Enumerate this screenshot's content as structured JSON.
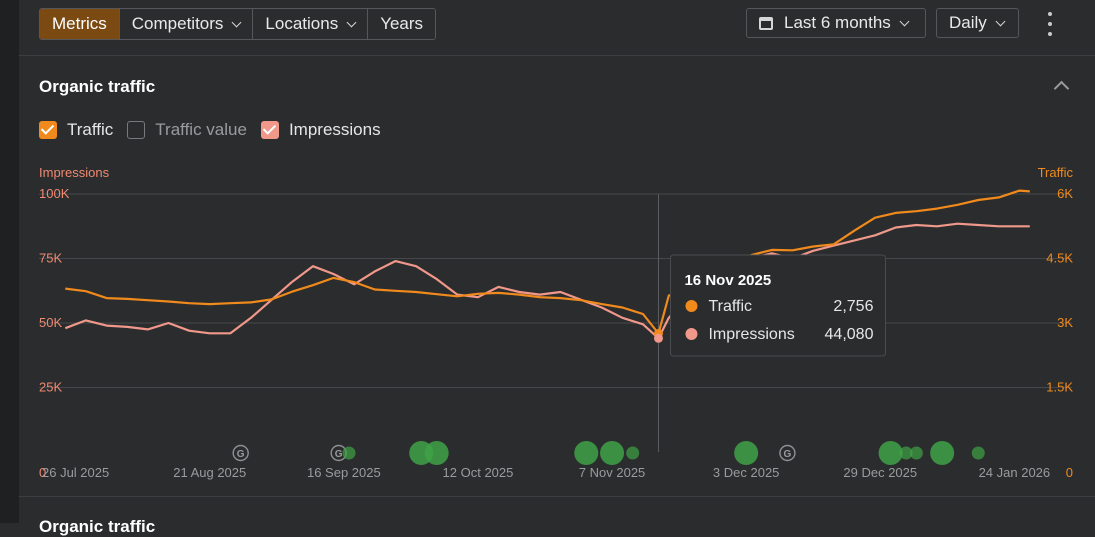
{
  "toolbar": {
    "tabs": [
      {
        "label": "Metrics",
        "active": true,
        "dropdown": false
      },
      {
        "label": "Competitors",
        "active": false,
        "dropdown": true
      },
      {
        "label": "Locations",
        "active": false,
        "dropdown": true
      },
      {
        "label": "Years",
        "active": false,
        "dropdown": false
      }
    ],
    "date_range": "Last 6 months",
    "interval": "Daily",
    "icons": {
      "calendar": "calendar-icon",
      "more": "kebab-menu-icon"
    }
  },
  "panel": {
    "title": "Organic traffic",
    "legend": [
      {
        "label": "Traffic",
        "checked": true,
        "color": "#f08a1c"
      },
      {
        "label": "Traffic value",
        "checked": false,
        "color": "#77797d"
      },
      {
        "label": "Impressions",
        "checked": true,
        "color": "#f0988a"
      }
    ]
  },
  "tooltip": {
    "date": "16 Nov 2025",
    "rows": [
      {
        "label": "Traffic",
        "value": "2,756",
        "color": "#f08a1c"
      },
      {
        "label": "Impressions",
        "value": "44,080",
        "color": "#f0988a"
      }
    ]
  },
  "bottom_section": {
    "title": "Organic traffic"
  },
  "colors": {
    "traffic": "#f08a1c",
    "impressions": "#f0988a",
    "event": "#3fa246",
    "background": "#2b2c2e"
  },
  "chart_data": {
    "type": "line",
    "x_start": "2025-07-22",
    "x_end": "2026-01-28",
    "x_ticks": [
      {
        "date": "2025-07-26",
        "label": "26 Jul 2025"
      },
      {
        "date": "2025-08-21",
        "label": "21 Aug 2025"
      },
      {
        "date": "2025-09-16",
        "label": "16 Sep 2025"
      },
      {
        "date": "2025-10-12",
        "label": "12 Oct 2025"
      },
      {
        "date": "2025-11-07",
        "label": "7 Nov 2025"
      },
      {
        "date": "2025-12-03",
        "label": "3 Dec 2025"
      },
      {
        "date": "2025-12-29",
        "label": "29 Dec 2025"
      },
      {
        "date": "2026-01-24",
        "label": "24 Jan 2026"
      }
    ],
    "y_left": {
      "title": "Impressions",
      "min": 0,
      "max": 100000,
      "ticks": [
        0,
        25000,
        50000,
        75000,
        100000
      ],
      "tick_labels": [
        "0",
        "25K",
        "50K",
        "75K",
        "100K"
      ],
      "color": "#f08a70"
    },
    "y_right": {
      "title": "Traffic",
      "min": 0,
      "max": 6000,
      "ticks": [
        0,
        1500,
        3000,
        4500,
        6000
      ],
      "tick_labels": [
        "0",
        "1.5K",
        "3K",
        "4.5K",
        "6K"
      ],
      "color": "#f08a1c"
    },
    "grid": true,
    "hover_date": "2025-11-16",
    "series": [
      {
        "name": "Traffic",
        "axis": "right",
        "points": [
          [
            "2025-07-24",
            3800
          ],
          [
            "2025-07-28",
            3740
          ],
          [
            "2025-08-01",
            3580
          ],
          [
            "2025-08-05",
            3560
          ],
          [
            "2025-08-09",
            3530
          ],
          [
            "2025-08-13",
            3500
          ],
          [
            "2025-08-17",
            3460
          ],
          [
            "2025-08-21",
            3440
          ],
          [
            "2025-08-25",
            3460
          ],
          [
            "2025-08-29",
            3480
          ],
          [
            "2025-09-02",
            3550
          ],
          [
            "2025-09-06",
            3730
          ],
          [
            "2025-09-10",
            3880
          ],
          [
            "2025-09-14",
            4050
          ],
          [
            "2025-09-18",
            3950
          ],
          [
            "2025-09-22",
            3780
          ],
          [
            "2025-09-26",
            3750
          ],
          [
            "2025-09-30",
            3720
          ],
          [
            "2025-10-04",
            3670
          ],
          [
            "2025-10-08",
            3620
          ],
          [
            "2025-10-12",
            3680
          ],
          [
            "2025-10-16",
            3700
          ],
          [
            "2025-10-20",
            3660
          ],
          [
            "2025-10-24",
            3600
          ],
          [
            "2025-10-28",
            3580
          ],
          [
            "2025-11-01",
            3530
          ],
          [
            "2025-11-05",
            3440
          ],
          [
            "2025-11-09",
            3360
          ],
          [
            "2025-11-13",
            3210
          ],
          [
            "2025-11-16",
            2756
          ],
          [
            "2025-11-18",
            3640
          ],
          [
            "2025-11-22",
            3700
          ],
          [
            "2025-11-26",
            4150
          ],
          [
            "2025-11-30",
            4380
          ],
          [
            "2025-12-04",
            4580
          ],
          [
            "2025-12-08",
            4700
          ],
          [
            "2025-12-12",
            4690
          ],
          [
            "2025-12-16",
            4780
          ],
          [
            "2025-12-20",
            4830
          ],
          [
            "2025-12-24",
            5150
          ],
          [
            "2025-12-28",
            5450
          ],
          [
            "2026-01-01",
            5560
          ],
          [
            "2026-01-05",
            5600
          ],
          [
            "2026-01-09",
            5660
          ],
          [
            "2026-01-13",
            5750
          ],
          [
            "2026-01-17",
            5860
          ],
          [
            "2026-01-21",
            5920
          ],
          [
            "2026-01-25",
            6080
          ],
          [
            "2026-01-27",
            6060
          ]
        ]
      },
      {
        "name": "Impressions",
        "axis": "left",
        "points": [
          [
            "2025-07-24",
            48000
          ],
          [
            "2025-07-28",
            51000
          ],
          [
            "2025-08-01",
            49000
          ],
          [
            "2025-08-05",
            48500
          ],
          [
            "2025-08-09",
            47500
          ],
          [
            "2025-08-13",
            50000
          ],
          [
            "2025-08-17",
            47000
          ],
          [
            "2025-08-21",
            46000
          ],
          [
            "2025-08-25",
            46000
          ],
          [
            "2025-08-29",
            52000
          ],
          [
            "2025-09-02",
            59000
          ],
          [
            "2025-09-06",
            66000
          ],
          [
            "2025-09-10",
            72000
          ],
          [
            "2025-09-14",
            69000
          ],
          [
            "2025-09-18",
            65000
          ],
          [
            "2025-09-22",
            70000
          ],
          [
            "2025-09-26",
            74000
          ],
          [
            "2025-09-30",
            72000
          ],
          [
            "2025-10-04",
            67000
          ],
          [
            "2025-10-08",
            61000
          ],
          [
            "2025-10-12",
            60000
          ],
          [
            "2025-10-16",
            64000
          ],
          [
            "2025-10-20",
            62000
          ],
          [
            "2025-10-24",
            61000
          ],
          [
            "2025-10-28",
            62000
          ],
          [
            "2025-11-01",
            59000
          ],
          [
            "2025-11-05",
            56000
          ],
          [
            "2025-11-09",
            52000
          ],
          [
            "2025-11-13",
            49500
          ],
          [
            "2025-11-16",
            44080
          ],
          [
            "2025-11-18",
            52000
          ],
          [
            "2025-11-22",
            61000
          ],
          [
            "2025-11-26",
            71000
          ],
          [
            "2025-11-30",
            73000
          ],
          [
            "2025-12-04",
            75000
          ],
          [
            "2025-12-08",
            77000
          ],
          [
            "2025-12-12",
            75000
          ],
          [
            "2025-12-16",
            78000
          ],
          [
            "2025-12-20",
            80000
          ],
          [
            "2025-12-24",
            82000
          ],
          [
            "2025-12-28",
            84000
          ],
          [
            "2026-01-01",
            87000
          ],
          [
            "2026-01-05",
            88000
          ],
          [
            "2026-01-09",
            87500
          ],
          [
            "2026-01-13",
            88500
          ],
          [
            "2026-01-17",
            88000
          ],
          [
            "2026-01-21",
            87500
          ],
          [
            "2026-01-25",
            87500
          ],
          [
            "2026-01-27",
            87500
          ]
        ]
      }
    ],
    "annotations": [
      {
        "date": "2025-08-27",
        "kind": "google-update",
        "label": "G"
      },
      {
        "date": "2025-09-15",
        "kind": "google-update",
        "label": "G"
      },
      {
        "date": "2025-09-17",
        "kind": "event",
        "size": "small"
      },
      {
        "date": "2025-10-01",
        "kind": "event",
        "size": "large"
      },
      {
        "date": "2025-10-04",
        "kind": "event",
        "size": "large"
      },
      {
        "date": "2025-11-02",
        "kind": "event",
        "size": "large"
      },
      {
        "date": "2025-11-07",
        "kind": "event",
        "size": "large"
      },
      {
        "date": "2025-11-11",
        "kind": "event",
        "size": "small"
      },
      {
        "date": "2025-12-03",
        "kind": "event",
        "size": "large"
      },
      {
        "date": "2025-12-11",
        "kind": "google-update",
        "label": "G"
      },
      {
        "date": "2025-12-31",
        "kind": "event",
        "size": "large"
      },
      {
        "date": "2026-01-03",
        "kind": "event",
        "size": "small"
      },
      {
        "date": "2026-01-05",
        "kind": "event",
        "size": "small"
      },
      {
        "date": "2026-01-10",
        "kind": "event",
        "size": "large"
      },
      {
        "date": "2026-01-17",
        "kind": "event",
        "size": "small"
      }
    ]
  }
}
